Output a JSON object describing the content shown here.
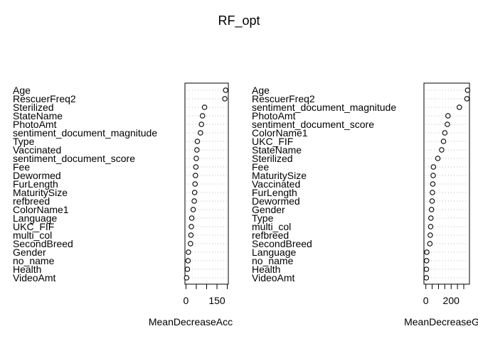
{
  "chart_data": {
    "title": "RF_opt",
    "panels": [
      {
        "type": "scatter",
        "xlabel": "MeanDecreaseAcc",
        "xlim": [
          -5,
          205
        ],
        "xticks": [
          0,
          50,
          100,
          150,
          200
        ],
        "xtick_labels": [
          {
            "value": 0,
            "label": "0"
          },
          {
            "value": 150,
            "label": "150"
          }
        ],
        "grid": "dotted-horizontal",
        "variables": [
          "Age",
          "RescuerFreq2",
          "Sterilized",
          "StateName",
          "PhotoAmt",
          "sentiment_document_magnitude",
          "Type",
          "Vaccinated",
          "sentiment_document_score",
          "Fee",
          "Dewormed",
          "FurLength",
          "MaturitySize",
          "refbreed",
          "ColorName1",
          "Language",
          "UKC_FIF",
          "multi_col",
          "SecondBreed",
          "Gender",
          "no_name",
          "Health",
          "VideoAmt"
        ],
        "values": [
          192,
          188,
          90,
          80,
          75,
          70,
          55,
          53,
          50,
          48,
          46,
          44,
          42,
          40,
          35,
          28,
          26,
          24,
          22,
          12,
          10,
          7,
          3
        ]
      },
      {
        "type": "scatter",
        "xlabel": "MeanDecreaseGini",
        "xlim": [
          -15,
          345
        ],
        "xticks": [
          0,
          50,
          100,
          150,
          200,
          250,
          300
        ],
        "xtick_labels": [
          {
            "value": 0,
            "label": "0"
          },
          {
            "value": 200,
            "label": "200"
          }
        ],
        "grid": "dotted-horizontal",
        "variables": [
          "Age",
          "RescuerFreq2",
          "sentiment_document_magnitude",
          "PhotoAmt",
          "sentiment_document_score",
          "ColorName1",
          "UKC_FIF",
          "StateName",
          "Sterilized",
          "Fee",
          "MaturitySize",
          "Vaccinated",
          "FurLength",
          "Dewormed",
          "Gender",
          "Type",
          "multi_col",
          "refbreed",
          "SecondBreed",
          "Language",
          "no_name",
          "Health",
          "VideoAmt"
        ],
        "values": [
          330,
          325,
          265,
          175,
          170,
          150,
          140,
          125,
          95,
          60,
          58,
          55,
          52,
          50,
          45,
          40,
          38,
          35,
          32,
          8,
          6,
          5,
          4
        ]
      }
    ]
  }
}
